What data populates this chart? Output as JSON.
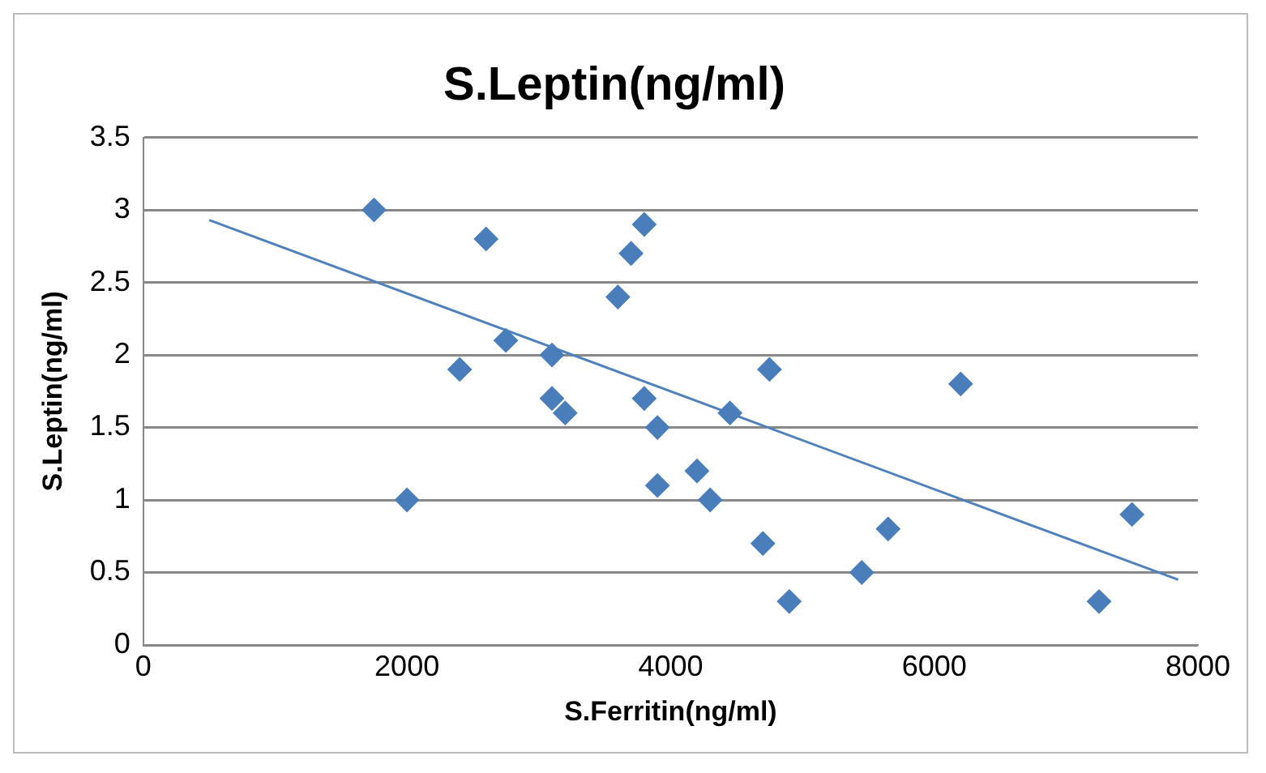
{
  "chart_data": {
    "type": "scatter",
    "title": "S.Leptin(ng/ml)",
    "xlabel": "S.Ferritin(ng/ml)",
    "ylabel": "S.Leptin(ng/ml)",
    "xlim": [
      0,
      8000
    ],
    "xticks": [
      0,
      2000,
      4000,
      6000,
      8000
    ],
    "ylim": [
      0,
      3.5
    ],
    "yticks": [
      0,
      0.5,
      1,
      1.5,
      2,
      2.5,
      3,
      3.5
    ],
    "grid": "y",
    "legend": false,
    "series": [
      {
        "marker": "diamond",
        "color": "#4a7ebb",
        "x": [
          1750,
          2000,
          2400,
          2600,
          2750,
          3100,
          3100,
          3200,
          3600,
          3700,
          3800,
          3800,
          3900,
          3900,
          4200,
          4300,
          4450,
          4750,
          4700,
          4900,
          5450,
          5650,
          6200,
          7250,
          7500
        ],
        "values": [
          3.0,
          1.0,
          1.9,
          2.8,
          2.1,
          2.0,
          1.7,
          1.6,
          2.4,
          2.7,
          2.9,
          1.7,
          1.5,
          1.1,
          1.2,
          1.0,
          1.6,
          1.9,
          0.7,
          0.3,
          0.5,
          0.8,
          1.8,
          0.3,
          0.9
        ]
      },
      {
        "type": "line",
        "marker": "none",
        "color": "#4f81bd",
        "x": [
          500,
          7850
        ],
        "values": [
          2.93,
          0.45
        ]
      }
    ]
  }
}
